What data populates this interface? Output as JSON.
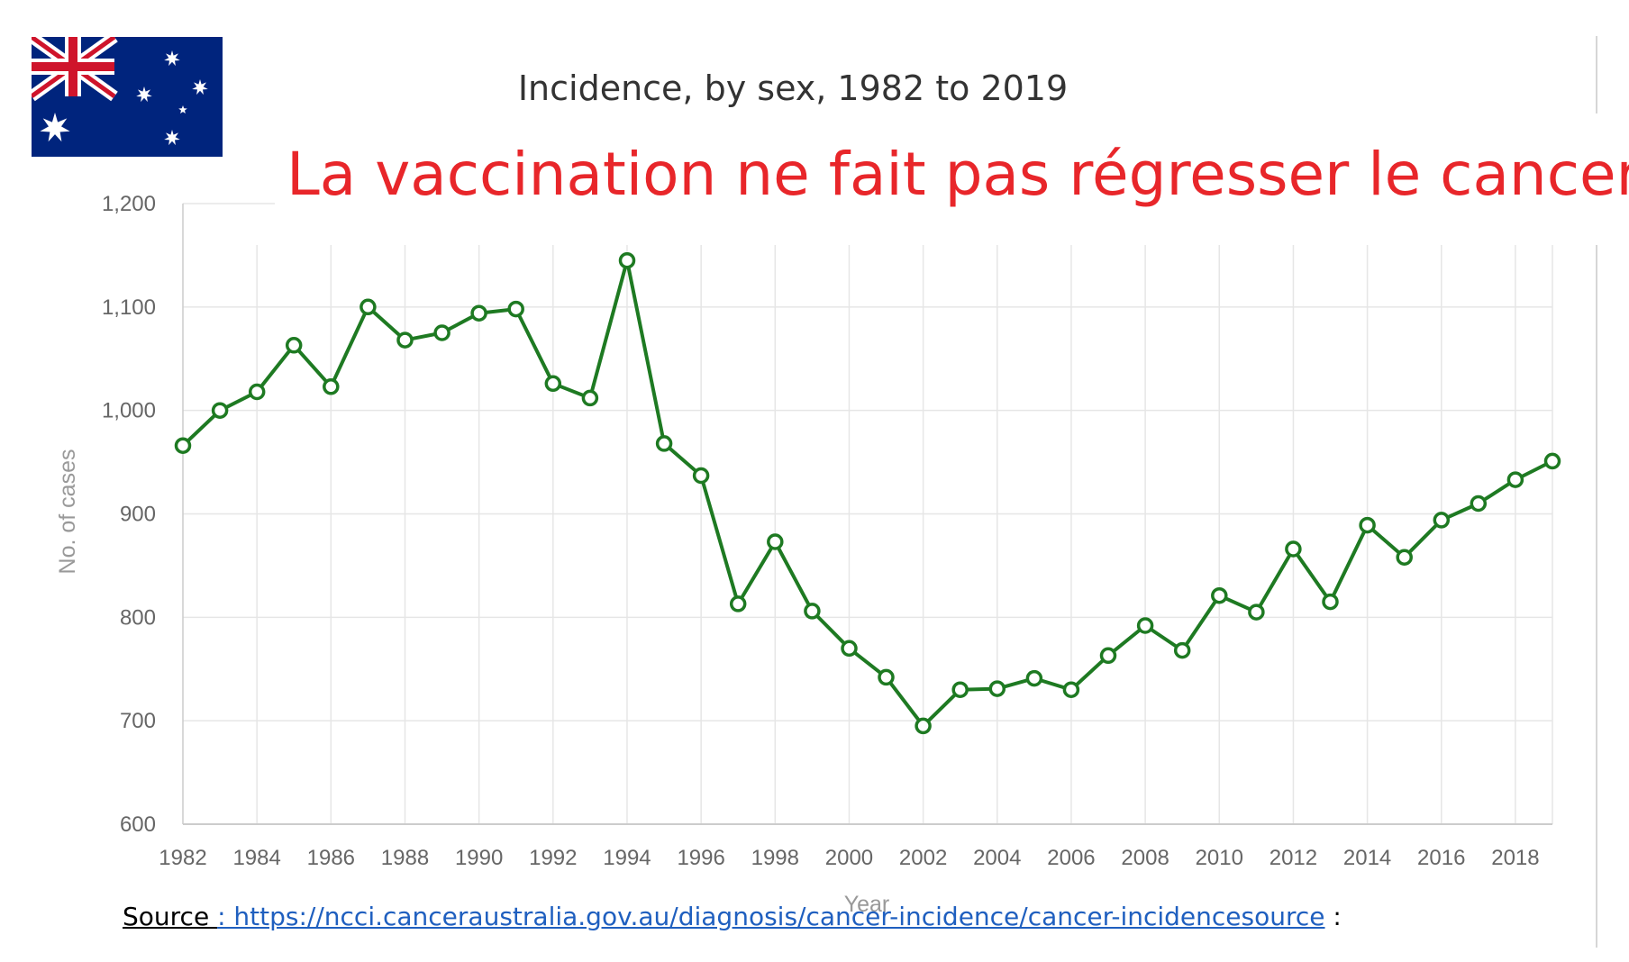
{
  "headline": "La vaccination ne fait pas régresser le cancer",
  "flag_icon": "australia-flag-icon",
  "source": {
    "label": "Source ",
    "url_text": ": https://ncci.canceraustralia.gov.au/diagnosis/cancer-incidence/cancer-incidencesource",
    "trailing": " :"
  },
  "colors": {
    "series": "#1e7a22",
    "headline": "#e8262a",
    "grid": "#e6e6e6"
  },
  "chart_data": {
    "type": "line",
    "title": "Incidence, by sex, 1982 to 2019",
    "xlabel": "Year",
    "ylabel": "No. of cases",
    "xlim": [
      1982,
      2019
    ],
    "ylim": [
      600,
      1200
    ],
    "grid": true,
    "x_ticks": [
      "1982",
      "1984",
      "1986",
      "1988",
      "1990",
      "1992",
      "1994",
      "1996",
      "1998",
      "2000",
      "2002",
      "2004",
      "2006",
      "2008",
      "2010",
      "2012",
      "2014",
      "2016",
      "2018"
    ],
    "y_ticks": [
      "600",
      "700",
      "800",
      "900",
      "1,000",
      "1,100",
      "1,200"
    ],
    "x": [
      1982,
      1983,
      1984,
      1985,
      1986,
      1987,
      1988,
      1989,
      1990,
      1991,
      1992,
      1993,
      1994,
      1995,
      1996,
      1997,
      1998,
      1999,
      2000,
      2001,
      2002,
      2003,
      2004,
      2005,
      2006,
      2007,
      2008,
      2009,
      2010,
      2011,
      2012,
      2013,
      2014,
      2015,
      2016,
      2017,
      2018,
      2019
    ],
    "series": [
      {
        "values": [
          966,
          1000,
          1018,
          1063,
          1023,
          1100,
          1068,
          1075,
          1094,
          1098,
          1026,
          1012,
          1145,
          968,
          937,
          813,
          873,
          806,
          770,
          742,
          695,
          730,
          731,
          741,
          730,
          763,
          792,
          768,
          821,
          805,
          866,
          815,
          889,
          858,
          894,
          910,
          933,
          951
        ]
      }
    ]
  }
}
